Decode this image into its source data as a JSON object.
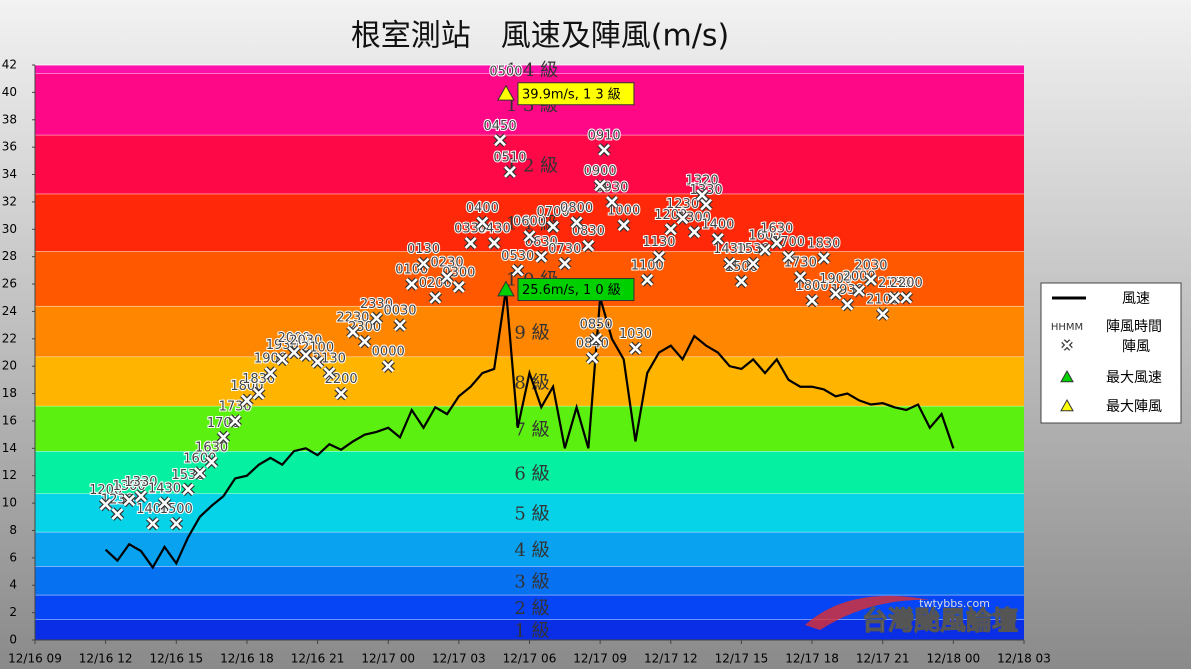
{
  "chart_data": {
    "type": "wind_gust",
    "title": "根室測站　風速及陣風(m/s)",
    "xlim": [
      9,
      51
    ],
    "xticks": [
      {
        "value": 9,
        "label": "12/16 09"
      },
      {
        "value": 12,
        "label": "12/16 12"
      },
      {
        "value": 15,
        "label": "12/16 15"
      },
      {
        "value": 18,
        "label": "12/16 18"
      },
      {
        "value": 21,
        "label": "12/16 21"
      },
      {
        "value": 24,
        "label": "12/17 00"
      },
      {
        "value": 27,
        "label": "12/17 03"
      },
      {
        "value": 30,
        "label": "12/17 06"
      },
      {
        "value": 33,
        "label": "12/17 09"
      },
      {
        "value": 36,
        "label": "12/17 12"
      },
      {
        "value": 39,
        "label": "12/17 15"
      },
      {
        "value": 42,
        "label": "12/17 18"
      },
      {
        "value": 45,
        "label": "12/17 21"
      },
      {
        "value": 48,
        "label": "12/18 00"
      },
      {
        "value": 51,
        "label": "12/18 03"
      }
    ],
    "ylim": [
      0,
      42
    ],
    "yticks": [
      0,
      2,
      4,
      6,
      8,
      10,
      12,
      14,
      16,
      18,
      20,
      22,
      24,
      26,
      28,
      30,
      32,
      34,
      36,
      38,
      40,
      42
    ],
    "bands": [
      {
        "from": 0,
        "to": 1.5,
        "label": "1 級",
        "color": "#0a2ee6"
      },
      {
        "from": 1.5,
        "to": 3.3,
        "label": "2 級",
        "color": "#0645f5"
      },
      {
        "from": 3.3,
        "to": 5.4,
        "label": "3 級",
        "color": "#0672f2"
      },
      {
        "from": 5.4,
        "to": 7.9,
        "label": "4 級",
        "color": "#08a2f0"
      },
      {
        "from": 7.9,
        "to": 10.7,
        "label": "5 級",
        "color": "#06d2e8"
      },
      {
        "from": 10.7,
        "to": 13.8,
        "label": "6 級",
        "color": "#05f0a0"
      },
      {
        "from": 13.8,
        "to": 17.1,
        "label": "7 級",
        "color": "#5cf010"
      },
      {
        "from": 17.1,
        "to": 20.7,
        "label": "8 級",
        "color": "#ffb400"
      },
      {
        "from": 20.7,
        "to": 24.4,
        "label": "9 級",
        "color": "#ff8600"
      },
      {
        "from": 24.4,
        "to": 28.4,
        "label": "1 0 級",
        "color": "#ff5800"
      },
      {
        "from": 28.4,
        "to": 32.6,
        "label": "1 1 級",
        "color": "#ff2808"
      },
      {
        "from": 32.6,
        "to": 36.9,
        "label": "1 2 級",
        "color": "#ff0848"
      },
      {
        "from": 36.9,
        "to": 41.4,
        "label": "1 3 級",
        "color": "#ff0888"
      },
      {
        "from": 41.4,
        "to": 42,
        "label": "1 4 級",
        "color": "#ff10a8"
      }
    ],
    "wind": {
      "name": "風速",
      "color": "#000000",
      "points": [
        {
          "x": 12,
          "value": 6.6
        },
        {
          "x": 12.5,
          "value": 5.8
        },
        {
          "x": 13,
          "value": 7.0
        },
        {
          "x": 13.5,
          "value": 6.5
        },
        {
          "x": 14,
          "value": 5.3
        },
        {
          "x": 14.5,
          "value": 6.8
        },
        {
          "x": 15,
          "value": 5.6
        },
        {
          "x": 15.5,
          "value": 7.5
        },
        {
          "x": 16,
          "value": 9.0
        },
        {
          "x": 16.5,
          "value": 9.8
        },
        {
          "x": 17,
          "value": 10.5
        },
        {
          "x": 17.5,
          "value": 11.8
        },
        {
          "x": 18,
          "value": 12.0
        },
        {
          "x": 18.5,
          "value": 12.8
        },
        {
          "x": 19,
          "value": 13.3
        },
        {
          "x": 19.5,
          "value": 12.8
        },
        {
          "x": 20,
          "value": 13.8
        },
        {
          "x": 20.5,
          "value": 14.0
        },
        {
          "x": 21,
          "value": 13.5
        },
        {
          "x": 21.5,
          "value": 14.3
        },
        {
          "x": 22,
          "value": 13.9
        },
        {
          "x": 22.5,
          "value": 14.5
        },
        {
          "x": 23,
          "value": 15.0
        },
        {
          "x": 23.5,
          "value": 15.2
        },
        {
          "x": 24,
          "value": 15.5
        },
        {
          "x": 24.5,
          "value": 14.8
        },
        {
          "x": 25,
          "value": 16.8
        },
        {
          "x": 25.5,
          "value": 15.5
        },
        {
          "x": 26,
          "value": 17.0
        },
        {
          "x": 26.5,
          "value": 16.5
        },
        {
          "x": 27,
          "value": 17.8
        },
        {
          "x": 27.5,
          "value": 18.5
        },
        {
          "x": 28,
          "value": 19.5
        },
        {
          "x": 28.5,
          "value": 19.8
        },
        {
          "x": 29,
          "value": 25.6
        },
        {
          "x": 29.5,
          "value": 15.5
        },
        {
          "x": 30,
          "value": 19.5
        },
        {
          "x": 30.5,
          "value": 17.0
        },
        {
          "x": 31,
          "value": 18.5
        },
        {
          "x": 31.5,
          "value": 14.0
        },
        {
          "x": 32,
          "value": 17.0
        },
        {
          "x": 32.5,
          "value": 14.0
        },
        {
          "x": 33,
          "value": 25.0
        },
        {
          "x": 33.5,
          "value": 22.0
        },
        {
          "x": 34,
          "value": 20.5
        },
        {
          "x": 34.5,
          "value": 14.5
        },
        {
          "x": 35,
          "value": 19.5
        },
        {
          "x": 35.5,
          "value": 21.0
        },
        {
          "x": 36,
          "value": 21.5
        },
        {
          "x": 36.5,
          "value": 20.5
        },
        {
          "x": 37,
          "value": 22.2
        },
        {
          "x": 37.5,
          "value": 21.5
        },
        {
          "x": 38,
          "value": 21.0
        },
        {
          "x": 38.5,
          "value": 20.0
        },
        {
          "x": 39,
          "value": 19.8
        },
        {
          "x": 39.5,
          "value": 20.5
        },
        {
          "x": 40,
          "value": 19.5
        },
        {
          "x": 40.5,
          "value": 20.5
        },
        {
          "x": 41,
          "value": 19.0
        },
        {
          "x": 41.5,
          "value": 18.5
        },
        {
          "x": 42,
          "value": 18.5
        },
        {
          "x": 42.5,
          "value": 18.3
        },
        {
          "x": 43,
          "value": 17.8
        },
        {
          "x": 43.5,
          "value": 18.0
        },
        {
          "x": 44,
          "value": 17.5
        },
        {
          "x": 44.5,
          "value": 17.2
        },
        {
          "x": 45,
          "value": 17.3
        },
        {
          "x": 45.5,
          "value": 17.0
        },
        {
          "x": 46,
          "value": 16.8
        },
        {
          "x": 46.5,
          "value": 17.2
        },
        {
          "x": 47,
          "value": 15.5
        },
        {
          "x": 47.5,
          "value": 16.5
        },
        {
          "x": 48,
          "value": 14.0
        }
      ]
    },
    "gust": {
      "name": "陣風",
      "time_name": "陣風時間",
      "time_key": "HHMM",
      "points": [
        {
          "x": 12,
          "value": 9.9,
          "label": "1200"
        },
        {
          "x": 12.5,
          "value": 9.2,
          "label": "1230"
        },
        {
          "x": 13,
          "value": 10.2,
          "label": "1300"
        },
        {
          "x": 13.5,
          "value": 10.5,
          "label": "1330"
        },
        {
          "x": 14,
          "value": 8.5,
          "label": "1400"
        },
        {
          "x": 14.5,
          "value": 10.0,
          "label": "1430"
        },
        {
          "x": 15,
          "value": 8.5,
          "label": "1500"
        },
        {
          "x": 15.5,
          "value": 11.0,
          "label": "1530"
        },
        {
          "x": 16,
          "value": 12.2,
          "label": "1600"
        },
        {
          "x": 16.5,
          "value": 13.0,
          "label": "1630"
        },
        {
          "x": 17,
          "value": 14.8,
          "label": "1700"
        },
        {
          "x": 17.5,
          "value": 16.0,
          "label": "1730"
        },
        {
          "x": 18,
          "value": 17.5,
          "label": "1800"
        },
        {
          "x": 18.5,
          "value": 18.0,
          "label": "1830"
        },
        {
          "x": 19,
          "value": 19.5,
          "label": "1900"
        },
        {
          "x": 19.5,
          "value": 20.5,
          "label": "1930"
        },
        {
          "x": 20,
          "value": 21.0,
          "label": "2000"
        },
        {
          "x": 20.5,
          "value": 20.8,
          "label": "2030"
        },
        {
          "x": 21,
          "value": 20.3,
          "label": "2100"
        },
        {
          "x": 21.5,
          "value": 19.5,
          "label": "2130"
        },
        {
          "x": 22,
          "value": 18.0,
          "label": "2200"
        },
        {
          "x": 22.5,
          "value": 22.5,
          "label": "2230"
        },
        {
          "x": 23,
          "value": 21.8,
          "label": "2300"
        },
        {
          "x": 23.5,
          "value": 23.5,
          "label": "2330"
        },
        {
          "x": 24,
          "value": 20.0,
          "label": "0000"
        },
        {
          "x": 24.5,
          "value": 23.0,
          "label": "0030"
        },
        {
          "x": 25,
          "value": 26.0,
          "label": "0100"
        },
        {
          "x": 25.5,
          "value": 27.5,
          "label": "0130"
        },
        {
          "x": 26,
          "value": 25.0,
          "label": "0200"
        },
        {
          "x": 26.5,
          "value": 26.5,
          "label": "0230"
        },
        {
          "x": 27,
          "value": 25.8,
          "label": "0300"
        },
        {
          "x": 27.5,
          "value": 29.0,
          "label": "0330"
        },
        {
          "x": 28,
          "value": 30.5,
          "label": "0400"
        },
        {
          "x": 28.5,
          "value": 29.0,
          "label": "0430"
        },
        {
          "x": 28.75,
          "value": 36.5,
          "label": "0450"
        },
        {
          "x": 29.17,
          "value": 34.2,
          "label": "0510"
        },
        {
          "x": 29.5,
          "value": 27.0,
          "label": "0530"
        },
        {
          "x": 30,
          "value": 29.5,
          "label": "0600"
        },
        {
          "x": 30.5,
          "value": 28.0,
          "label": "0630"
        },
        {
          "x": 31,
          "value": 30.2,
          "label": "0700"
        },
        {
          "x": 31.5,
          "value": 27.5,
          "label": "0730"
        },
        {
          "x": 32,
          "value": 30.5,
          "label": "0800"
        },
        {
          "x": 32.5,
          "value": 28.8,
          "label": "0830"
        },
        {
          "x": 32.67,
          "value": 20.6,
          "label": "0840"
        },
        {
          "x": 32.83,
          "value": 22.0,
          "label": "0850"
        },
        {
          "x": 33,
          "value": 33.2,
          "label": "0900"
        },
        {
          "x": 33.17,
          "value": 35.8,
          "label": "0910"
        },
        {
          "x": 33.5,
          "value": 32.0,
          "label": "0930"
        },
        {
          "x": 34,
          "value": 30.3,
          "label": "1000"
        },
        {
          "x": 34.5,
          "value": 21.3,
          "label": "1030"
        },
        {
          "x": 35,
          "value": 26.3,
          "label": "1100"
        },
        {
          "x": 35.5,
          "value": 28.0,
          "label": "1130"
        },
        {
          "x": 36,
          "value": 30.0,
          "label": "1200"
        },
        {
          "x": 36.5,
          "value": 30.8,
          "label": "1230"
        },
        {
          "x": 37,
          "value": 29.8,
          "label": "1300"
        },
        {
          "x": 37.33,
          "value": 32.5,
          "label": "1320"
        },
        {
          "x": 37.5,
          "value": 31.8,
          "label": "1330"
        },
        {
          "x": 38,
          "value": 29.3,
          "label": "1400"
        },
        {
          "x": 38.5,
          "value": 27.5,
          "label": "1430"
        },
        {
          "x": 39,
          "value": 26.2,
          "label": "1500"
        },
        {
          "x": 39.5,
          "value": 27.5,
          "label": "1530"
        },
        {
          "x": 40,
          "value": 28.5,
          "label": "1600"
        },
        {
          "x": 40.5,
          "value": 29.0,
          "label": "1630"
        },
        {
          "x": 41,
          "value": 28.0,
          "label": "1700"
        },
        {
          "x": 41.5,
          "value": 26.5,
          "label": "1730"
        },
        {
          "x": 42,
          "value": 24.8,
          "label": "1800"
        },
        {
          "x": 42.5,
          "value": 27.9,
          "label": "1830"
        },
        {
          "x": 43,
          "value": 25.3,
          "label": "1900"
        },
        {
          "x": 43.5,
          "value": 24.5,
          "label": "1930"
        },
        {
          "x": 44,
          "value": 25.5,
          "label": "2000"
        },
        {
          "x": 44.5,
          "value": 26.3,
          "label": "2030"
        },
        {
          "x": 45,
          "value": 23.8,
          "label": "2100"
        },
        {
          "x": 45.5,
          "value": 25.0,
          "label": "2130"
        },
        {
          "x": 46,
          "value": 25.0,
          "label": "2200"
        }
      ]
    },
    "max_wind": {
      "name": "最大風速",
      "x": 29,
      "value": 25.6,
      "label": "25.6m/s, 1 0 級",
      "color": "#00d000"
    },
    "max_gust": {
      "name": "最大陣風",
      "x": 29,
      "value": 39.9,
      "label": "39.9m/s, 1 3 級",
      "color": "#ffff00",
      "time": "0500"
    },
    "watermark": {
      "site": "twtybbs.com",
      "name": "台灣颱風論壇"
    }
  }
}
